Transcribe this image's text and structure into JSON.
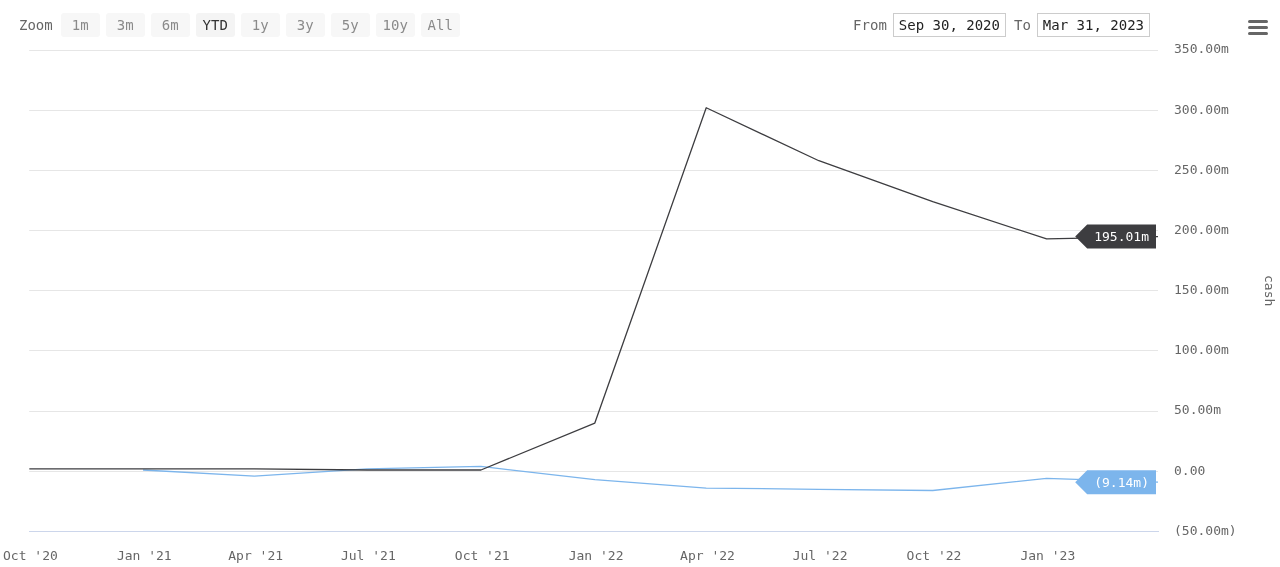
{
  "chart_data": {
    "type": "line",
    "ylabel": "cash",
    "annotations": [
      "Zoom",
      "1m",
      "3m",
      "6m",
      "YTD",
      "1y",
      "3y",
      "5y",
      "10y",
      "All",
      "From",
      "Sep 30, 2020",
      "To",
      "Mar 31, 2023"
    ],
    "series": [
      {
        "color": "#3d3d40",
        "x": [
          "2020-09-30",
          "2020-12-31",
          "2021-03-31",
          "2021-06-30",
          "2021-09-30",
          "2021-12-31",
          "2022-03-31",
          "2022-06-30",
          "2022-09-30",
          "2022-12-31",
          "2023-03-31"
        ],
        "values": [
          2,
          2,
          2,
          1,
          1,
          40,
          302,
          258,
          224,
          193,
          195.01
        ],
        "value_labels": [
          null,
          null,
          null,
          null,
          null,
          null,
          null,
          null,
          null,
          null,
          "195.01m"
        ]
      },
      {
        "color": "#7cb5ec",
        "x": [
          "2020-12-31",
          "2021-03-31",
          "2021-06-30",
          "2021-09-30",
          "2021-12-31",
          "2022-03-31",
          "2022-06-30",
          "2022-09-30",
          "2022-12-31",
          "2023-03-31"
        ],
        "values": [
          1,
          -4,
          2,
          4,
          -7,
          -14,
          -15,
          -16,
          -6,
          -9.14
        ],
        "value_labels": [
          null,
          null,
          null,
          null,
          null,
          null,
          null,
          null,
          null,
          "(9.14m)"
        ]
      }
    ],
    "xlim": [
      "2020-09-30",
      "2023-03-31"
    ],
    "xticks": [
      {
        "value": "2020-10-01",
        "label": "Oct '20"
      },
      {
        "value": "2021-01-01",
        "label": "Jan '21"
      },
      {
        "value": "2021-04-01",
        "label": "Apr '21"
      },
      {
        "value": "2021-07-01",
        "label": "Jul '21"
      },
      {
        "value": "2021-10-01",
        "label": "Oct '21"
      },
      {
        "value": "2022-01-01",
        "label": "Jan '22"
      },
      {
        "value": "2022-04-01",
        "label": "Apr '22"
      },
      {
        "value": "2022-07-01",
        "label": "Jul '22"
      },
      {
        "value": "2022-10-01",
        "label": "Oct '22"
      },
      {
        "value": "2023-01-01",
        "label": "Jan '23"
      }
    ],
    "ylim": [
      -50,
      350
    ],
    "yticks": [
      {
        "value": -50,
        "label": "(50.00m)"
      },
      {
        "value": 0,
        "label": "0.00"
      },
      {
        "value": 50,
        "label": "50.00m"
      },
      {
        "value": 100,
        "label": "100.00m"
      },
      {
        "value": 150,
        "label": "150.00m"
      },
      {
        "value": 200,
        "label": "200.00m"
      },
      {
        "value": 250,
        "label": "250.00m"
      },
      {
        "value": 300,
        "label": "300.00m"
      },
      {
        "value": 350,
        "label": "350.00m"
      }
    ],
    "grid": "y",
    "legend": false,
    "marker": "none",
    "line_style": "solid"
  }
}
